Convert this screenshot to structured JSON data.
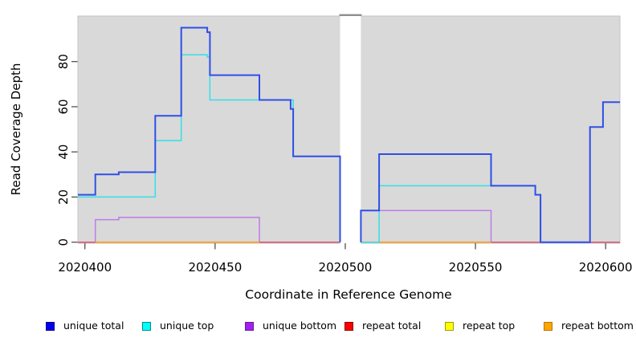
{
  "chart_data": {
    "type": "line",
    "subtype": "step",
    "title": "",
    "xlabel": "Coordinate in Reference Genome",
    "ylabel": "Read Coverage Depth",
    "xlim": [
      2020397.3,
      2020605.5
    ],
    "ylim": [
      0,
      100.5
    ],
    "x_ticks": [
      2020400,
      2020450,
      2020500,
      2020550,
      2020600
    ],
    "y_ticks": [
      0,
      20,
      40,
      60,
      80
    ],
    "grid": "off",
    "panel_background": "#d9d9d9",
    "panel_border": "#c2c2c2",
    "gap_region": {
      "x_start": 2020498,
      "x_end": 2020506,
      "fill": "#ffffff",
      "cap_color": "#8f8f8f"
    },
    "series": [
      {
        "name": "repeat top",
        "color": "#f2f200",
        "width": 1.3,
        "segments": [
          [
            [
              2020404,
              0
            ],
            [
              2020467,
              0
            ]
          ],
          [
            [
              2020506,
              0
            ],
            [
              2020556,
              0
            ]
          ]
        ]
      },
      {
        "name": "unique bottom",
        "color": "#bf7ce8",
        "width": 1.5,
        "segments": [
          [
            [
              2020397.3,
              0
            ],
            [
              2020404,
              10
            ],
            [
              2020413,
              11
            ],
            [
              2020467,
              0
            ],
            [
              2020498,
              0
            ]
          ],
          [
            [
              2020506,
              0
            ],
            [
              2020506,
              14
            ],
            [
              2020556,
              0
            ],
            [
              2020605.5,
              0
            ]
          ]
        ]
      },
      {
        "name": "repeat total",
        "color": "#e04f63",
        "width": 1.3,
        "segments": [
          [
            [
              2020397.3,
              0
            ],
            [
              2020498,
              0
            ]
          ],
          [
            [
              2020506,
              0
            ],
            [
              2020605.5,
              0
            ]
          ]
        ]
      },
      {
        "name": "repeat bottom",
        "color": "#ff9e1c",
        "width": 1.6,
        "segments": [
          [
            [
              2020404,
              0
            ],
            [
              2020467,
              0
            ]
          ],
          [
            [
              2020506,
              0
            ],
            [
              2020556,
              0
            ]
          ]
        ]
      },
      {
        "name": "unique top",
        "color": "#33dfe6",
        "width": 1.5,
        "segments": [
          [
            [
              2020397.3,
              20
            ],
            [
              2020427,
              45
            ],
            [
              2020437,
              83
            ],
            [
              2020447,
              82
            ],
            [
              2020448,
              63
            ],
            [
              2020480,
              38
            ],
            [
              2020498,
              0
            ]
          ],
          [
            [
              2020506,
              0
            ],
            [
              2020513,
              25
            ],
            [
              2020573,
              21
            ],
            [
              2020575,
              0
            ],
            [
              2020594,
              51
            ],
            [
              2020599,
              62
            ],
            [
              2020605.5,
              62
            ]
          ]
        ]
      },
      {
        "name": "unique total",
        "color": "#2f4fe6",
        "width": 2,
        "segments": [
          [
            [
              2020397.3,
              21
            ],
            [
              2020404,
              30
            ],
            [
              2020413,
              31
            ],
            [
              2020427,
              56
            ],
            [
              2020437,
              95
            ],
            [
              2020447,
              93
            ],
            [
              2020448,
              74
            ],
            [
              2020467,
              63
            ],
            [
              2020479,
              59
            ],
            [
              2020480,
              38
            ],
            [
              2020498,
              0
            ]
          ],
          [
            [
              2020506,
              0
            ],
            [
              2020506,
              14
            ],
            [
              2020513,
              39
            ],
            [
              2020556,
              25
            ],
            [
              2020573,
              21
            ],
            [
              2020575,
              0
            ],
            [
              2020594,
              51
            ],
            [
              2020599,
              62
            ],
            [
              2020605.5,
              62
            ]
          ]
        ]
      }
    ],
    "legend": [
      {
        "label": "unique total",
        "fill": "#0000ee",
        "border": "#00008b"
      },
      {
        "label": "unique top",
        "fill": "#00ffff",
        "border": "#008b8b"
      },
      {
        "label": "unique bottom",
        "fill": "#a020f0",
        "border": "#6a1b9a"
      },
      {
        "label": "repeat total",
        "fill": "#ff0000",
        "border": "#8b0000"
      },
      {
        "label": "repeat top",
        "fill": "#ffff00",
        "border": "#9e9e00"
      },
      {
        "label": "repeat bottom",
        "fill": "#ffa500",
        "border": "#b87400"
      }
    ],
    "legend_position": "bottom"
  }
}
